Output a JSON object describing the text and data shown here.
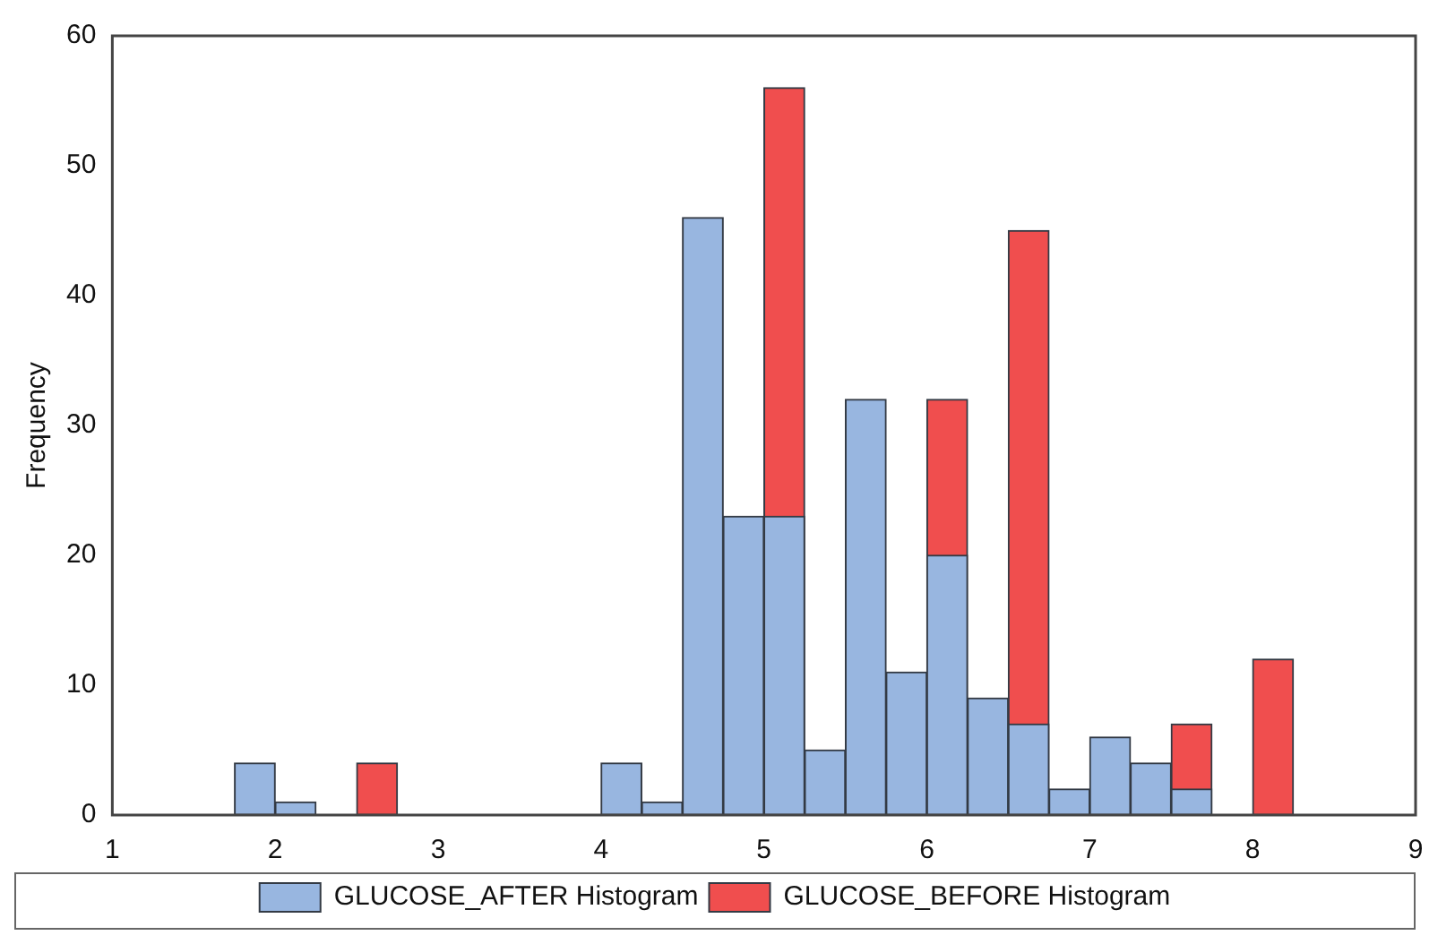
{
  "chart_data": {
    "type": "histogram",
    "ylabel": "Frequency",
    "bins": [
      1.75,
      2,
      2.25,
      2.5,
      2.75,
      3,
      3.25,
      3.5,
      3.75,
      4,
      4.25,
      4.5,
      4.75,
      5,
      5.25,
      5.5,
      5.75,
      6,
      6.25,
      6.5,
      6.75,
      7,
      7.25,
      7.5,
      7.75,
      8,
      8.25
    ],
    "series": [
      {
        "name": "GLUCOSE_AFTER Histogram",
        "color": "#98b6e0",
        "values": [
          4,
          1,
          0,
          0,
          0,
          0,
          0,
          0,
          0,
          4,
          1,
          46,
          23,
          23,
          5,
          32,
          11,
          20,
          9,
          7,
          2,
          6,
          4,
          2,
          0,
          0
        ]
      },
      {
        "name": "GLUCOSE_BEFORE Histogram",
        "color": "#f04e4e",
        "values": [
          null,
          null,
          0,
          4,
          0,
          0,
          0,
          0,
          0,
          null,
          null,
          null,
          null,
          56,
          null,
          null,
          null,
          32,
          null,
          45,
          null,
          null,
          null,
          7,
          0,
          12
        ]
      }
    ],
    "xlim": [
      1,
      9
    ],
    "xticks": [
      1,
      2,
      3,
      4,
      5,
      6,
      7,
      8,
      9
    ],
    "ylim": [
      0,
      60
    ],
    "yticks": [
      0,
      10,
      20,
      30,
      40,
      50,
      60
    ],
    "grid": false,
    "legend": "bottom"
  }
}
